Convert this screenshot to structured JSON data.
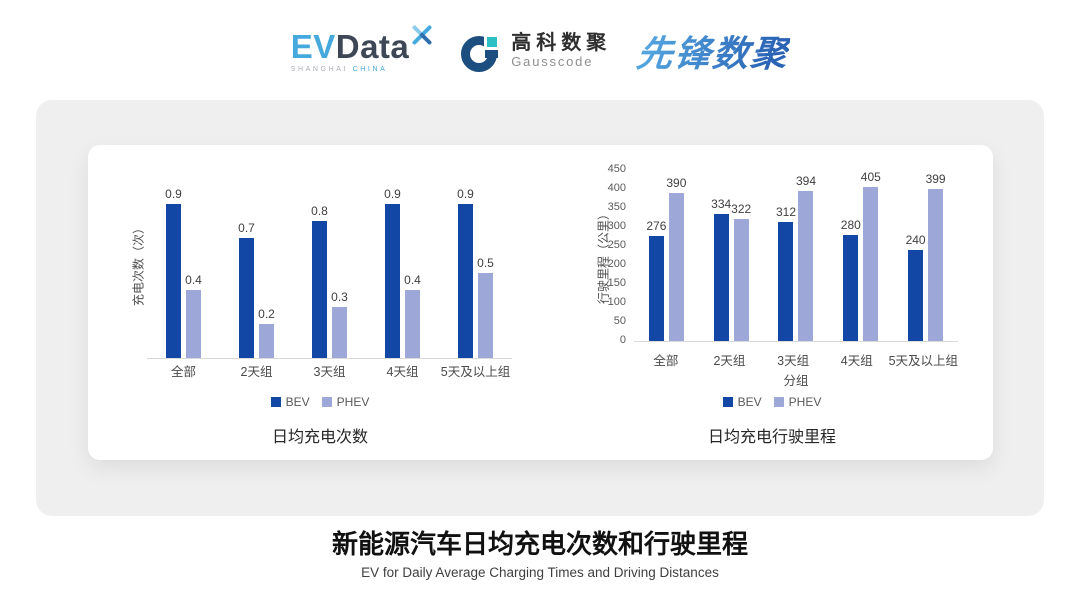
{
  "header": {
    "evdata": {
      "ev": "EV",
      "data": "Data",
      "sub_left": "SHANGHAI",
      "sub_right": "CHINA"
    },
    "gausscode": {
      "cn": "高科数聚",
      "en": "Gausscode"
    },
    "pioneer": {
      "text": "先锋数聚"
    }
  },
  "colors": {
    "bev": "#1247a5",
    "phev": "#9da7d8",
    "panel_gray": "#efefef",
    "axis_line": "#d9d9d9",
    "evdata_blue": "#45a9dd",
    "evdata_dark": "#3d4756",
    "gauss_navy": "#1c4f80",
    "gauss_teal": "#2cc0c4",
    "pioneer_blue": "#2f7ac9"
  },
  "chart_data": [
    {
      "type": "bar",
      "title": "日均充电次数",
      "ylabel": "充电次数（次）",
      "xlabel": "",
      "categories": [
        "全部",
        "2天组",
        "3天组",
        "4天组",
        "5天及以上组"
      ],
      "series": [
        {
          "name": "BEV",
          "color": "#1247a5",
          "values": [
            0.9,
            0.7,
            0.8,
            0.9,
            0.9
          ]
        },
        {
          "name": "PHEV",
          "color": "#9da7d8",
          "values": [
            0.4,
            0.2,
            0.3,
            0.4,
            0.5
          ]
        }
      ],
      "ylim": [
        0,
        1.1
      ],
      "yticks": [],
      "grid": false,
      "value_labels": true,
      "legend_position": "bottom"
    },
    {
      "type": "bar",
      "title": "日均充电行驶里程",
      "ylabel": "行驶里程（公里）",
      "xlabel": "分组",
      "categories": [
        "全部",
        "2天组",
        "3天组",
        "4天组",
        "5天及以上组"
      ],
      "series": [
        {
          "name": "BEV",
          "color": "#1247a5",
          "values": [
            276,
            334,
            312,
            280,
            240
          ]
        },
        {
          "name": "PHEV",
          "color": "#9da7d8",
          "values": [
            390,
            322,
            394,
            405,
            399
          ]
        }
      ],
      "ylim": [
        0,
        450
      ],
      "yticks": [
        0,
        50,
        100,
        150,
        200,
        250,
        300,
        350,
        400,
        450
      ],
      "grid": false,
      "value_labels": true,
      "legend_position": "bottom"
    }
  ],
  "footer": {
    "title": "新能源汽车日均充电次数和行驶里程",
    "subtitle": "EV for Daily Average Charging Times and Driving Distances"
  }
}
